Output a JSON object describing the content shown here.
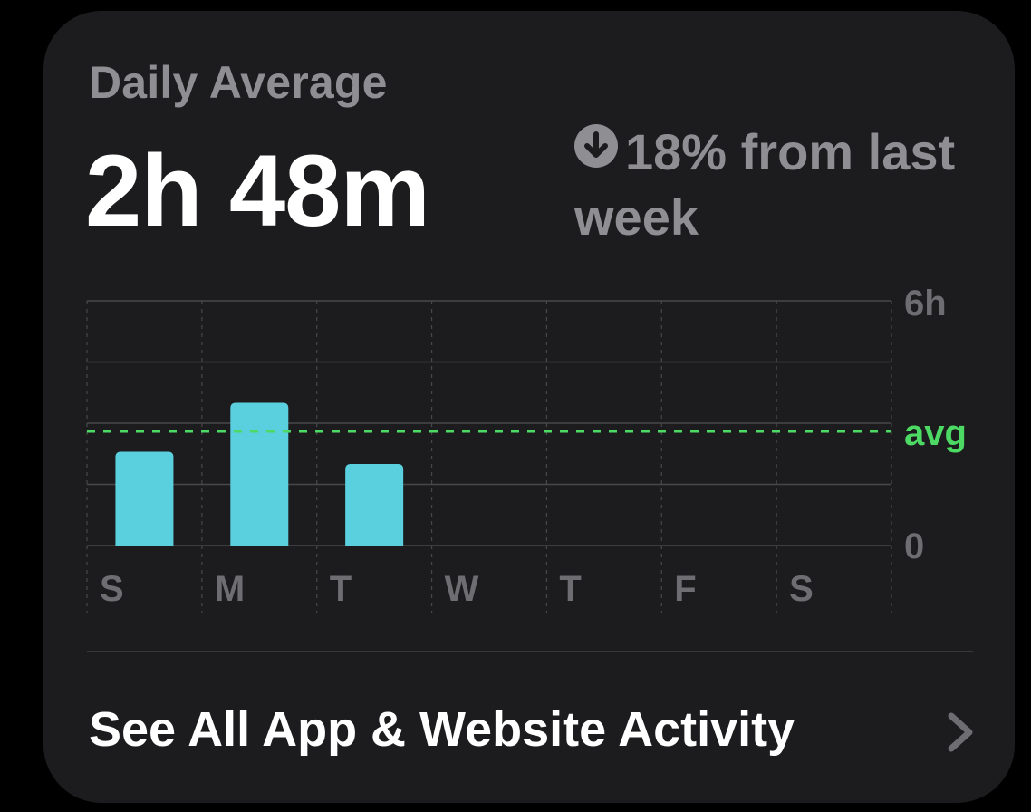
{
  "card": {
    "title": "Daily Average",
    "value": "2h 48m",
    "change_text": "18% from last week",
    "change_icon": "arrow-down-circle-icon",
    "see_all_label": "See All App & Website Activity",
    "chevron_icon": "chevron-right-icon"
  },
  "colors": {
    "background": "#000000",
    "card": "#1c1c1e",
    "bar": "#5ad0df",
    "avg_line": "#4cd964",
    "secondary_text": "#8e8e93",
    "grid": "#48484a"
  },
  "chart_data": {
    "type": "bar",
    "categories": [
      "S",
      "M",
      "T",
      "W",
      "T",
      "F",
      "S"
    ],
    "values": [
      2.3,
      3.5,
      2.0,
      0,
      0,
      0,
      0
    ],
    "ylim": [
      0,
      6
    ],
    "ytick_labels": [
      "6h",
      "0"
    ],
    "avg_label": "avg",
    "average": 2.8,
    "grid": true
  }
}
